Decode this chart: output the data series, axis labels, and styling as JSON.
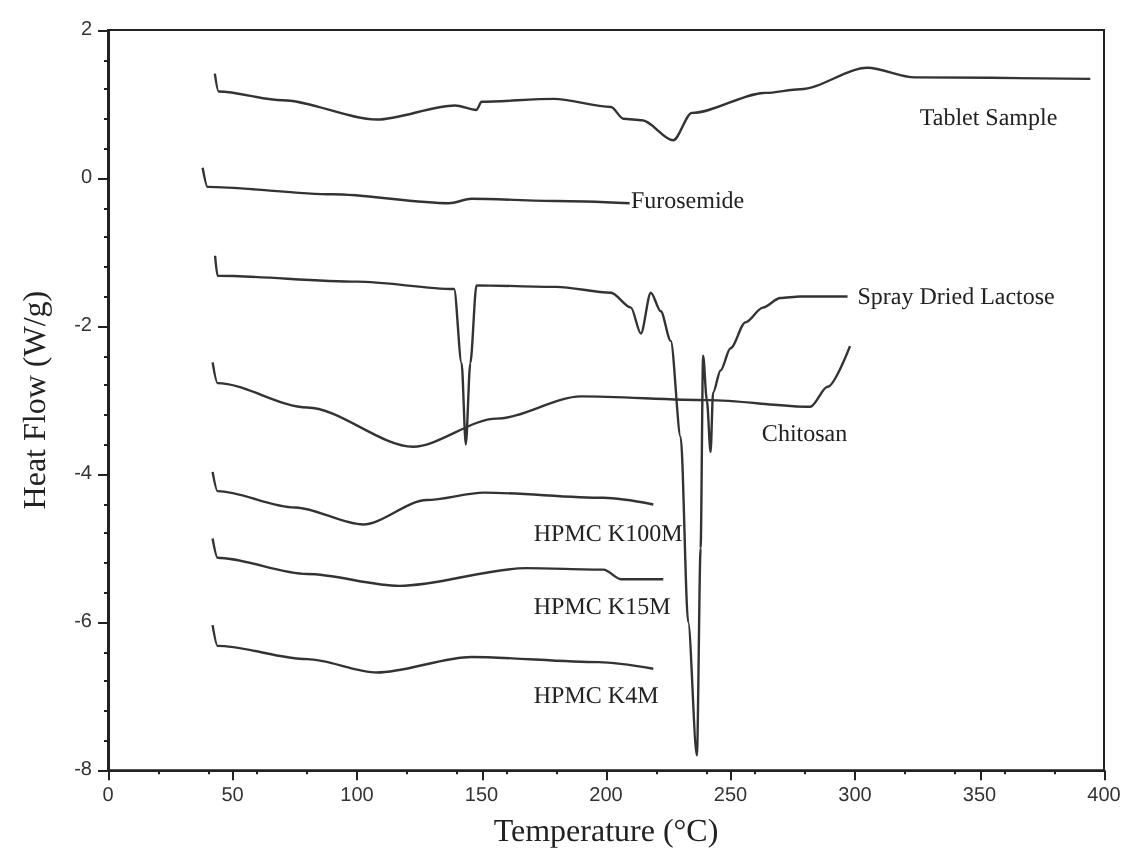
{
  "chart_data": {
    "type": "line",
    "xlabel": "Temperature (°C)",
    "ylabel": "Heat Flow (W/g)",
    "xlim": [
      0,
      400
    ],
    "xticks": [
      0,
      50,
      100,
      150,
      200,
      250,
      300,
      350,
      400
    ],
    "ylim": [
      -8,
      2
    ],
    "yticks": [
      -8,
      -6,
      -4,
      -2,
      0,
      2
    ],
    "grid": false,
    "legend": false,
    "marker": "none",
    "line_style": "solid",
    "series": [
      {
        "name": "Tablet Sample",
        "color": "#333333",
        "x": [
          42.9,
          44.4,
          70,
          108,
          139.4,
          148,
          150,
          179,
          202,
          207,
          214.5,
          227,
          234.5,
          264,
          278,
          305,
          324,
          394.5
        ],
        "values": [
          1.41,
          1.17,
          1.05,
          0.79,
          0.98,
          0.92,
          1.03,
          1.07,
          0.96,
          0.8,
          0.78,
          0.51,
          0.88,
          1.15,
          1.2,
          1.49,
          1.36,
          1.34
        ]
      },
      {
        "name": "Furosemide",
        "color": "#333333",
        "x": [
          38,
          40,
          90,
          137,
          146,
          180,
          209.5
        ],
        "values": [
          0.14,
          -0.12,
          -0.22,
          -0.34,
          -0.28,
          -0.31,
          -0.34
        ]
      },
      {
        "name": "Spray Dried Lactose",
        "color": "#333333",
        "x": [
          43,
          44,
          100,
          139,
          142,
          143.7,
          145.5,
          148,
          180,
          202,
          210,
          214,
          218,
          222,
          226,
          230,
          233,
          236.5,
          238,
          239,
          240.5,
          242,
          243,
          246,
          250,
          256,
          263,
          270,
          278,
          285,
          297
        ],
        "values": [
          -1.05,
          -1.32,
          -1.4,
          -1.5,
          -2.5,
          -3.6,
          -2.5,
          -1.45,
          -1.47,
          -1.55,
          -1.75,
          -2.1,
          -1.55,
          -1.8,
          -2.2,
          -3.5,
          -6,
          -7.8,
          -5,
          -2.4,
          -3,
          -3.7,
          -2.9,
          -2.6,
          -2.3,
          -1.95,
          -1.75,
          -1.62,
          -1.6,
          -1.6,
          -1.6
        ]
      },
      {
        "name": "Chitosan",
        "color": "#333333",
        "x": [
          42,
          44,
          80,
          122.5,
          156,
          190,
          241,
          282,
          289,
          298
        ],
        "values": [
          -2.49,
          -2.77,
          -3.1,
          -3.63,
          -3.25,
          -2.95,
          -3.0,
          -3.09,
          -2.82,
          -2.27
        ]
      },
      {
        "name": "HPMC K100M",
        "color": "#333333",
        "x": [
          42,
          44,
          75,
          102.5,
          128,
          151,
          199,
          219
        ],
        "values": [
          -3.97,
          -4.23,
          -4.45,
          -4.68,
          -4.35,
          -4.25,
          -4.32,
          -4.41
        ]
      },
      {
        "name": "HPMC K15M",
        "color": "#333333",
        "x": [
          42,
          44,
          80,
          117,
          168,
          199,
          206,
          223
        ],
        "values": [
          -4.87,
          -5.13,
          -5.35,
          -5.51,
          -5.27,
          -5.29,
          -5.42,
          -5.42
        ]
      },
      {
        "name": "HPMC K4M",
        "color": "#333333",
        "x": [
          42,
          44,
          80,
          108,
          146,
          197,
          219
        ],
        "values": [
          -6.04,
          -6.32,
          -6.5,
          -6.68,
          -6.47,
          -6.54,
          -6.63
        ]
      }
    ]
  }
}
